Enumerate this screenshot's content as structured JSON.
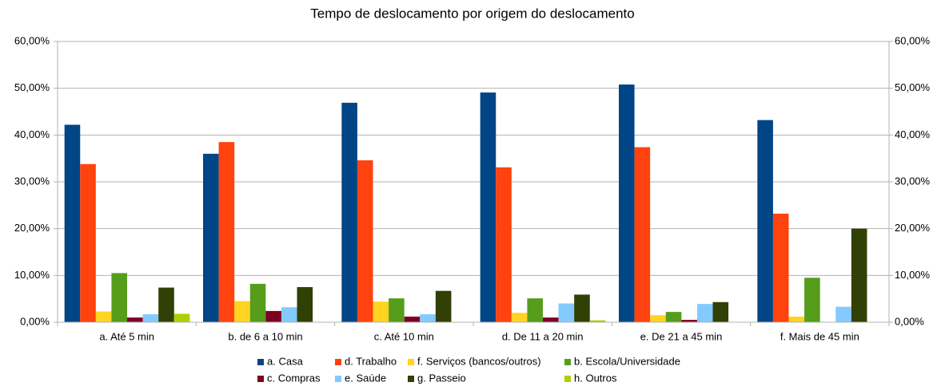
{
  "chart_data": {
    "type": "bar",
    "title": "Tempo de deslocamento por origem do deslocamento",
    "categories": [
      "a. Até 5 min",
      "b. de 6 a 10 min",
      "c. Até 10 min",
      "d. De 11 a 20 min",
      "e. De 21 a 45 min",
      "f. Mais de 45 min"
    ],
    "series": [
      {
        "name": "a. Casa",
        "color": "#004586",
        "values": [
          42.2,
          36.0,
          46.9,
          49.1,
          50.8,
          43.2
        ]
      },
      {
        "name": "d. Trabalho",
        "color": "#ff420e",
        "values": [
          33.8,
          38.5,
          34.6,
          33.1,
          37.4,
          23.2
        ]
      },
      {
        "name": "f. Serviços (bancos/outros)",
        "color": "#ffd320",
        "values": [
          2.3,
          4.5,
          4.4,
          2.0,
          1.5,
          1.2
        ]
      },
      {
        "name": "b. Escola/Universidade",
        "color": "#579d1c",
        "values": [
          10.5,
          8.2,
          5.1,
          5.1,
          2.2,
          9.5
        ]
      },
      {
        "name": "c. Compras",
        "color": "#7e0021",
        "values": [
          1.0,
          2.4,
          1.2,
          1.0,
          0.5,
          0
        ]
      },
      {
        "name": "e. Saúde",
        "color": "#83caff",
        "values": [
          1.7,
          3.2,
          1.7,
          4.0,
          3.9,
          3.3
        ]
      },
      {
        "name": "g. Passeio",
        "color": "#314004",
        "values": [
          7.4,
          7.5,
          6.7,
          5.9,
          4.3,
          20.0
        ]
      },
      {
        "name": "h. Outros",
        "color": "#aecf00",
        "values": [
          1.8,
          0,
          0,
          0.4,
          0,
          0
        ]
      }
    ],
    "ylim": [
      0,
      60
    ],
    "yticks": [
      {
        "value": 0,
        "label": "0,00%"
      },
      {
        "value": 10,
        "label": "10,00%"
      },
      {
        "value": 20,
        "label": "20,00%"
      },
      {
        "value": 30,
        "label": "30,00%"
      },
      {
        "value": 40,
        "label": "40,00%"
      },
      {
        "value": 50,
        "label": "50,00%"
      },
      {
        "value": 60,
        "label": "60,00%"
      }
    ],
    "y2lim": [
      0,
      60
    ],
    "y2ticks": [
      {
        "value": 0,
        "label": "0,00%"
      },
      {
        "value": 10,
        "label": "10,00%"
      },
      {
        "value": 20,
        "label": "20,00%"
      },
      {
        "value": 30,
        "label": "30,00%"
      },
      {
        "value": 40,
        "label": "40,00%"
      },
      {
        "value": 50,
        "label": "50,00%"
      },
      {
        "value": 60,
        "label": "60,00%"
      }
    ],
    "grid": true,
    "legend": "bottom"
  }
}
